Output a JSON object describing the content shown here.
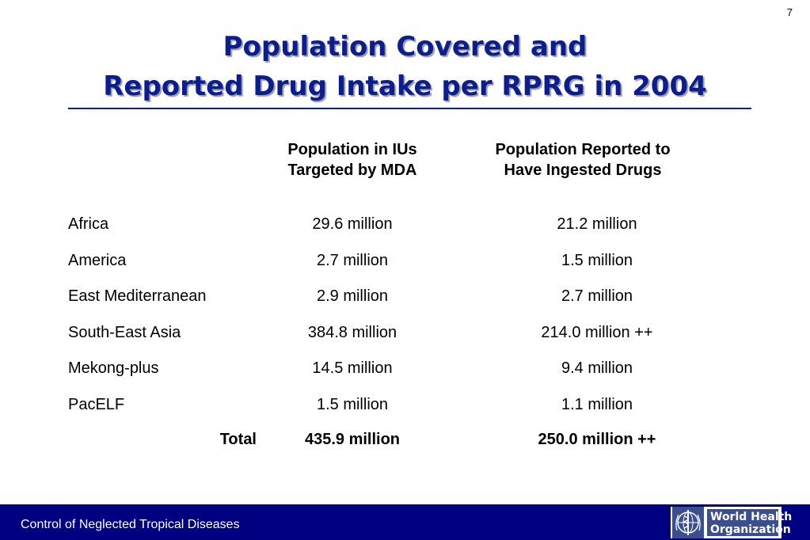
{
  "slide": {
    "page_number": "7",
    "title_line1": "Population Covered and",
    "title_line2": "Reported Drug Intake per RPRG in 2004"
  },
  "table": {
    "header_col1_line1": "Population in IUs",
    "header_col1_line2": "Targeted by MDA",
    "header_col2_line1": "Population Reported to",
    "header_col2_line2": "Have Ingested Drugs",
    "rows": [
      {
        "region": "Africa",
        "targeted": "29.6 million",
        "ingested": "21.2 million"
      },
      {
        "region": "America",
        "targeted": "2.7 million",
        "ingested": "1.5 million"
      },
      {
        "region": "East Mediterranean",
        "targeted": "2.9 million",
        "ingested": "2.7 million"
      },
      {
        "region": "South-East Asia",
        "targeted": "384.8 million",
        "ingested": "214.0 million ++"
      },
      {
        "region": "Mekong-plus",
        "targeted": "14.5 million",
        "ingested": "9.4 million"
      },
      {
        "region": "PacELF",
        "targeted": "1.5 million",
        "ingested": "1.1 million"
      }
    ],
    "total": {
      "label": "Total",
      "targeted": "435.9 million",
      "ingested": "250.0 million ++"
    }
  },
  "footer": {
    "text": "Control of Neglected Tropical Diseases",
    "logo_line1": "World Health",
    "logo_line2": "Organization",
    "color": "#000080"
  },
  "colors": {
    "title": "#0b1e8c",
    "rule": "#0b1e8c"
  }
}
